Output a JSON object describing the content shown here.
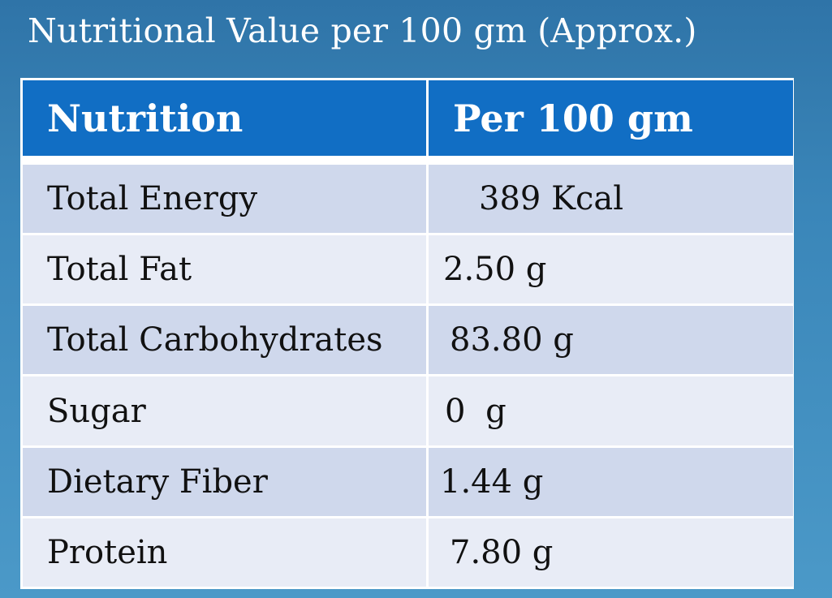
{
  "title": "Nutritional Value per 100 gm (Approx.)",
  "table": {
    "headers": [
      "Nutrition",
      "Per 100 gm"
    ],
    "rows": [
      {
        "nutrient": "Total Energy",
        "value": "389 Kcal"
      },
      {
        "nutrient": "Total Fat",
        "value": "2.50 g"
      },
      {
        "nutrient": "Total Carbohydrates",
        "value": "83.80 g"
      },
      {
        "nutrient": "Sugar",
        "value": "0 g"
      },
      {
        "nutrient": "Dietary Fiber",
        "value": "1.44 g"
      },
      {
        "nutrient": "Protein",
        "value": "7.80 g"
      }
    ]
  },
  "colors": {
    "background": "#3a86b9",
    "header": "#116ec4",
    "row_odd": "#cfd8ec",
    "row_even": "#e8ecf6"
  }
}
